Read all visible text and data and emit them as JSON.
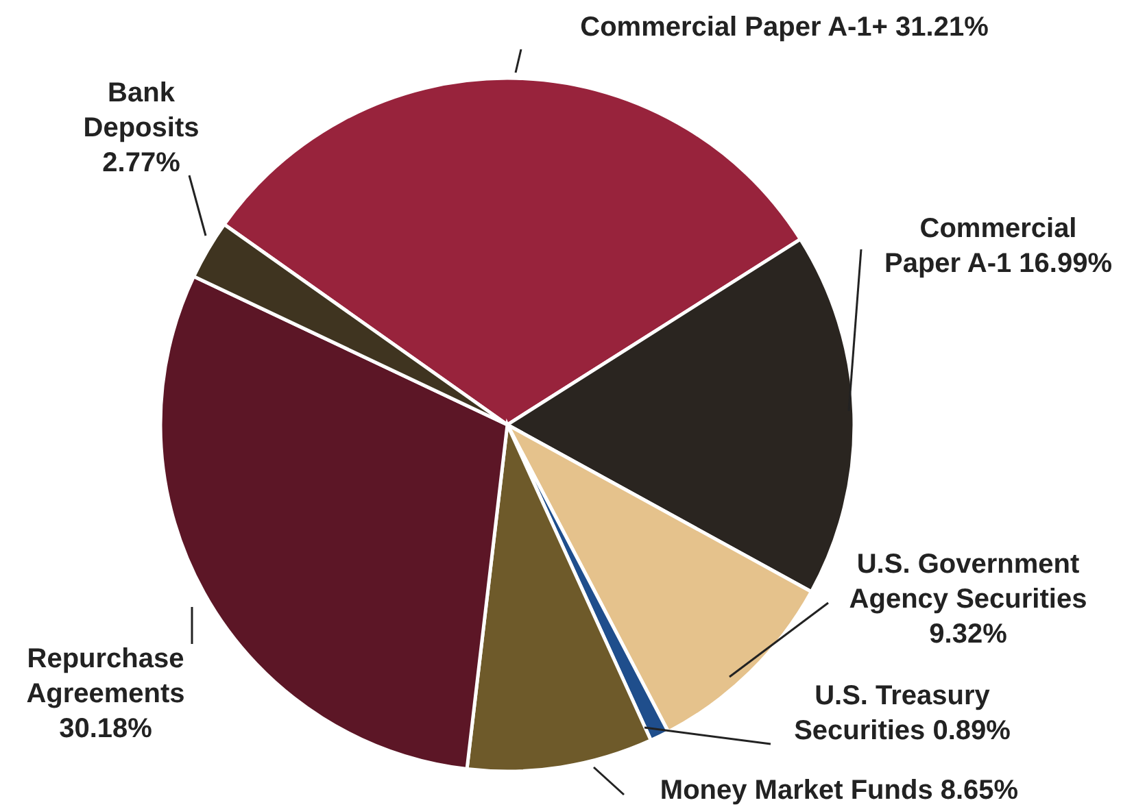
{
  "chart_data": {
    "type": "pie",
    "categories": [
      "Commercial Paper A-1+",
      "Commercial Paper A-1",
      "U.S. Government Agency Securities",
      "U.S. Treasury Securities",
      "Money Market Funds",
      "Repurchase Agreements",
      "Bank Deposits"
    ],
    "values": [
      31.21,
      16.99,
      9.32,
      0.89,
      8.65,
      30.18,
      2.77
    ],
    "value_labels": [
      "31.21%",
      "16.99%",
      "9.32%",
      "0.89%",
      "8.65%",
      "30.18%",
      "2.77%"
    ],
    "colors": [
      "#98233c",
      "#2a2520",
      "#e5c28c",
      "#1f4e8c",
      "#6e5a2a",
      "#5c1626",
      "#3f3420"
    ]
  }
}
